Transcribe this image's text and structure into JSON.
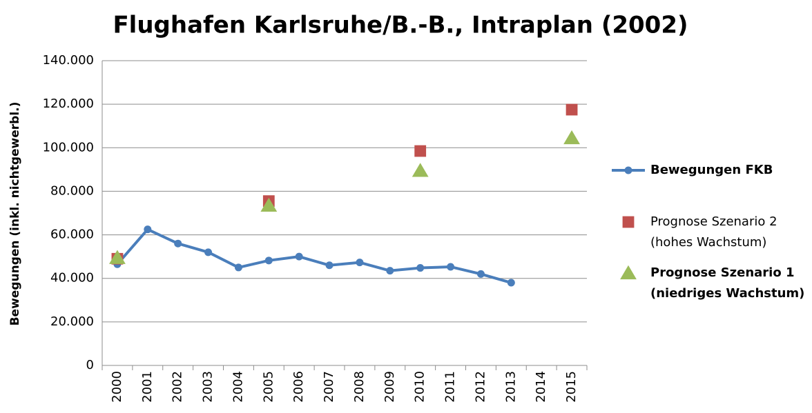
{
  "chart_data": {
    "type": "line",
    "title": "Flughafen Karlsruhe/B.-B., Intraplan (2002)",
    "y_label": "Bewegungen (inkl. nichtgewerbl.)",
    "categories": [
      "2000",
      "2001",
      "2002",
      "2003",
      "2004",
      "2005",
      "2006",
      "2007",
      "2008",
      "2009",
      "2010",
      "2011",
      "2012",
      "2013",
      "2014",
      "2015"
    ],
    "ylim": [
      0,
      140000
    ],
    "yticks": [
      0,
      {
        "value": 20000,
        "label": "20.000"
      },
      {
        "value": 40000,
        "label": "40.000"
      },
      {
        "value": 60000,
        "label": "60.000"
      },
      {
        "value": 80000,
        "label": "80.000"
      },
      {
        "value": 100000,
        "label": "100.000"
      },
      {
        "value": 120000,
        "label": "120.000"
      },
      {
        "value": 140000,
        "label": "140.000"
      }
    ],
    "grid": true,
    "legend": "right",
    "series": [
      {
        "name": "Bewegungen FKB",
        "color": "#4a7ebb",
        "marker": "circle",
        "line": true,
        "values": [
          46500,
          62500,
          56000,
          52000,
          45000,
          48200,
          50000,
          46000,
          47300,
          43500,
          44800,
          45300,
          42000,
          38000,
          null,
          null
        ]
      },
      {
        "name": "Prognose Szenario 2\n(hohes Wachstum)",
        "color": "#c0504d",
        "marker": "square",
        "line": false,
        "values": [
          49000,
          null,
          null,
          null,
          null,
          75500,
          null,
          null,
          null,
          null,
          98500,
          null,
          null,
          null,
          null,
          117500
        ]
      },
      {
        "name": "Prognose Szenario 1\n(niedriges Wachstum)",
        "color": "#9bbb59",
        "marker": "triangle",
        "line": false,
        "values": [
          49500,
          null,
          null,
          null,
          null,
          73500,
          null,
          null,
          null,
          null,
          89500,
          null,
          null,
          null,
          null,
          104500
        ]
      }
    ]
  }
}
